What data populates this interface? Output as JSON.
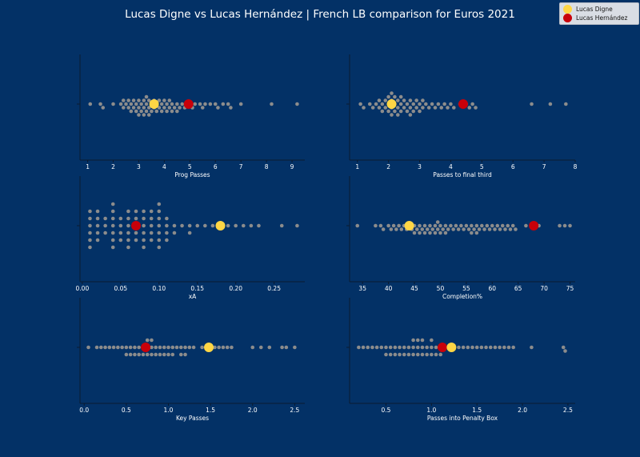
{
  "title": "Lucas Digne vs Lucas Hernández | French LB comparison for Euros 2021",
  "legend": {
    "placement": "top-right",
    "entries": [
      {
        "name": "Lucas Digne",
        "color": "#ffd645"
      },
      {
        "name": "Lucas Hernández",
        "color": "#c8000a"
      }
    ]
  },
  "colors": {
    "background": "#033166",
    "points": "#8c8c8c",
    "digne": "#ffd645",
    "hernandez": "#c8000a"
  },
  "chart_data": [
    {
      "type": "scatter",
      "kind": "swarm",
      "xlabel": "Prog Passes",
      "xlim": [
        0.7,
        9.5
      ],
      "ticks": [
        1,
        2,
        3,
        4,
        5,
        6,
        7,
        8,
        9
      ],
      "values": [
        1.1,
        1.5,
        1.6,
        2.0,
        2.3,
        2.4,
        2.4,
        2.5,
        2.6,
        2.6,
        2.7,
        2.7,
        2.8,
        2.8,
        2.9,
        2.9,
        3.0,
        3.0,
        3.0,
        3.1,
        3.1,
        3.2,
        3.2,
        3.2,
        3.3,
        3.3,
        3.3,
        3.4,
        3.4,
        3.4,
        3.5,
        3.5,
        3.6,
        3.6,
        3.7,
        3.7,
        3.8,
        3.8,
        3.9,
        3.9,
        4.0,
        4.0,
        4.1,
        4.1,
        4.2,
        4.2,
        4.3,
        4.3,
        4.4,
        4.5,
        4.5,
        4.6,
        4.7,
        4.8,
        5.0,
        5.1,
        5.2,
        5.4,
        5.5,
        5.6,
        5.8,
        6.0,
        6.1,
        6.3,
        6.5,
        6.6,
        7.0,
        8.2,
        9.2
      ],
      "digne": 3.6,
      "hernandez": 4.95
    },
    {
      "type": "scatter",
      "kind": "swarm",
      "xlabel": "Passes to final third",
      "xlim": [
        0.75,
        8.0
      ],
      "ticks": [
        1,
        2,
        3,
        4,
        5,
        6,
        7,
        8
      ],
      "values": [
        1.1,
        1.2,
        1.4,
        1.5,
        1.6,
        1.7,
        1.7,
        1.8,
        1.8,
        1.9,
        1.9,
        2.0,
        2.0,
        2.0,
        2.1,
        2.1,
        2.1,
        2.1,
        2.2,
        2.2,
        2.2,
        2.3,
        2.3,
        2.3,
        2.4,
        2.4,
        2.4,
        2.5,
        2.5,
        2.6,
        2.6,
        2.7,
        2.7,
        2.7,
        2.8,
        2.8,
        2.9,
        2.9,
        3.0,
        3.0,
        3.1,
        3.1,
        3.2,
        3.3,
        3.4,
        3.5,
        3.6,
        3.7,
        3.8,
        3.9,
        4.0,
        4.1,
        4.3,
        4.5,
        4.6,
        4.7,
        4.8,
        6.6,
        7.2,
        7.7
      ],
      "digne": 2.1,
      "hernandez": 4.4
    },
    {
      "type": "scatter",
      "kind": "swarm",
      "xlabel": "xA",
      "xlim": [
        -0.003,
        0.29
      ],
      "ticks": [
        0.0,
        0.05,
        0.1,
        0.15,
        0.2,
        0.25
      ],
      "tick_labels": [
        "0.00",
        "0.05",
        "0.10",
        "0.15",
        "0.20",
        "0.25"
      ],
      "values": [
        0.01,
        0.01,
        0.01,
        0.01,
        0.01,
        0.01,
        0.02,
        0.02,
        0.02,
        0.02,
        0.02,
        0.03,
        0.03,
        0.03,
        0.04,
        0.04,
        0.04,
        0.04,
        0.04,
        0.04,
        0.04,
        0.05,
        0.05,
        0.05,
        0.05,
        0.06,
        0.06,
        0.06,
        0.06,
        0.06,
        0.06,
        0.07,
        0.07,
        0.07,
        0.07,
        0.07,
        0.08,
        0.08,
        0.08,
        0.08,
        0.08,
        0.08,
        0.09,
        0.09,
        0.09,
        0.09,
        0.09,
        0.1,
        0.1,
        0.1,
        0.1,
        0.1,
        0.1,
        0.1,
        0.11,
        0.11,
        0.11,
        0.11,
        0.12,
        0.12,
        0.13,
        0.14,
        0.14,
        0.15,
        0.16,
        0.17,
        0.19,
        0.2,
        0.21,
        0.22,
        0.23,
        0.26,
        0.28
      ],
      "digne": 0.18,
      "hernandez": 0.07
    },
    {
      "type": "scatter",
      "kind": "swarm",
      "xlabel": "Completion%",
      "xlim": [
        32.5,
        76
      ],
      "ticks": [
        35,
        40,
        45,
        50,
        55,
        60,
        65,
        70,
        75
      ],
      "values": [
        34,
        37.5,
        38.5,
        39,
        40,
        40.5,
        41,
        41.5,
        42,
        42.5,
        43,
        43.5,
        44,
        44.5,
        45,
        45,
        45.5,
        46,
        46,
        46.5,
        47,
        47,
        47.5,
        48,
        48,
        48.5,
        49,
        49,
        49.5,
        49.5,
        50,
        50,
        50.5,
        51,
        51,
        51.5,
        52,
        52.5,
        53,
        53.5,
        54,
        54.5,
        55,
        55.5,
        56,
        56,
        56.5,
        57,
        57,
        57.5,
        58,
        58.5,
        59,
        59.5,
        60,
        60.5,
        61,
        61.5,
        62,
        62.5,
        63,
        63.5,
        64,
        64.5,
        66.5,
        69,
        73,
        74,
        75
      ],
      "digne": 44,
      "hernandez": 68
    },
    {
      "type": "scatter",
      "kind": "swarm",
      "xlabel": "Key Passes",
      "xlim": [
        -0.05,
        2.62
      ],
      "ticks": [
        0.0,
        0.5,
        1.0,
        1.5,
        2.0,
        2.5
      ],
      "tick_labels": [
        "0.0",
        "0.5",
        "1.0",
        "1.5",
        "2.0",
        "2.5"
      ],
      "values": [
        0.05,
        0.15,
        0.2,
        0.25,
        0.3,
        0.35,
        0.4,
        0.45,
        0.5,
        0.5,
        0.55,
        0.55,
        0.6,
        0.6,
        0.65,
        0.65,
        0.7,
        0.7,
        0.75,
        0.75,
        0.75,
        0.8,
        0.8,
        0.8,
        0.85,
        0.85,
        0.9,
        0.9,
        0.95,
        0.95,
        1.0,
        1.0,
        1.05,
        1.05,
        1.1,
        1.15,
        1.15,
        1.2,
        1.2,
        1.25,
        1.3,
        1.4,
        1.55,
        1.6,
        1.65,
        1.7,
        1.75,
        2.0,
        2.1,
        2.2,
        2.35,
        2.4,
        2.5
      ],
      "digne": 1.48,
      "hernandez": 0.73
    },
    {
      "type": "scatter",
      "kind": "swarm",
      "xlabel": "Passes into Penalty Box",
      "xlim": [
        0.1,
        2.58
      ],
      "ticks": [
        0.5,
        1.0,
        1.5,
        2.0,
        2.5
      ],
      "tick_labels": [
        "0.5",
        "1.0",
        "1.5",
        "2.0",
        "2.5"
      ],
      "values": [
        0.2,
        0.25,
        0.3,
        0.35,
        0.4,
        0.45,
        0.5,
        0.5,
        0.55,
        0.55,
        0.6,
        0.6,
        0.65,
        0.65,
        0.7,
        0.7,
        0.75,
        0.75,
        0.8,
        0.8,
        0.8,
        0.85,
        0.85,
        0.85,
        0.9,
        0.9,
        0.9,
        0.95,
        0.95,
        1.0,
        1.0,
        1.0,
        1.05,
        1.05,
        1.1,
        1.1,
        1.15,
        1.2,
        1.25,
        1.3,
        1.35,
        1.4,
        1.45,
        1.5,
        1.55,
        1.6,
        1.65,
        1.7,
        1.75,
        1.8,
        1.85,
        1.9,
        2.1,
        2.45,
        2.47
      ],
      "digne": 1.22,
      "hernandez": 1.12
    }
  ]
}
